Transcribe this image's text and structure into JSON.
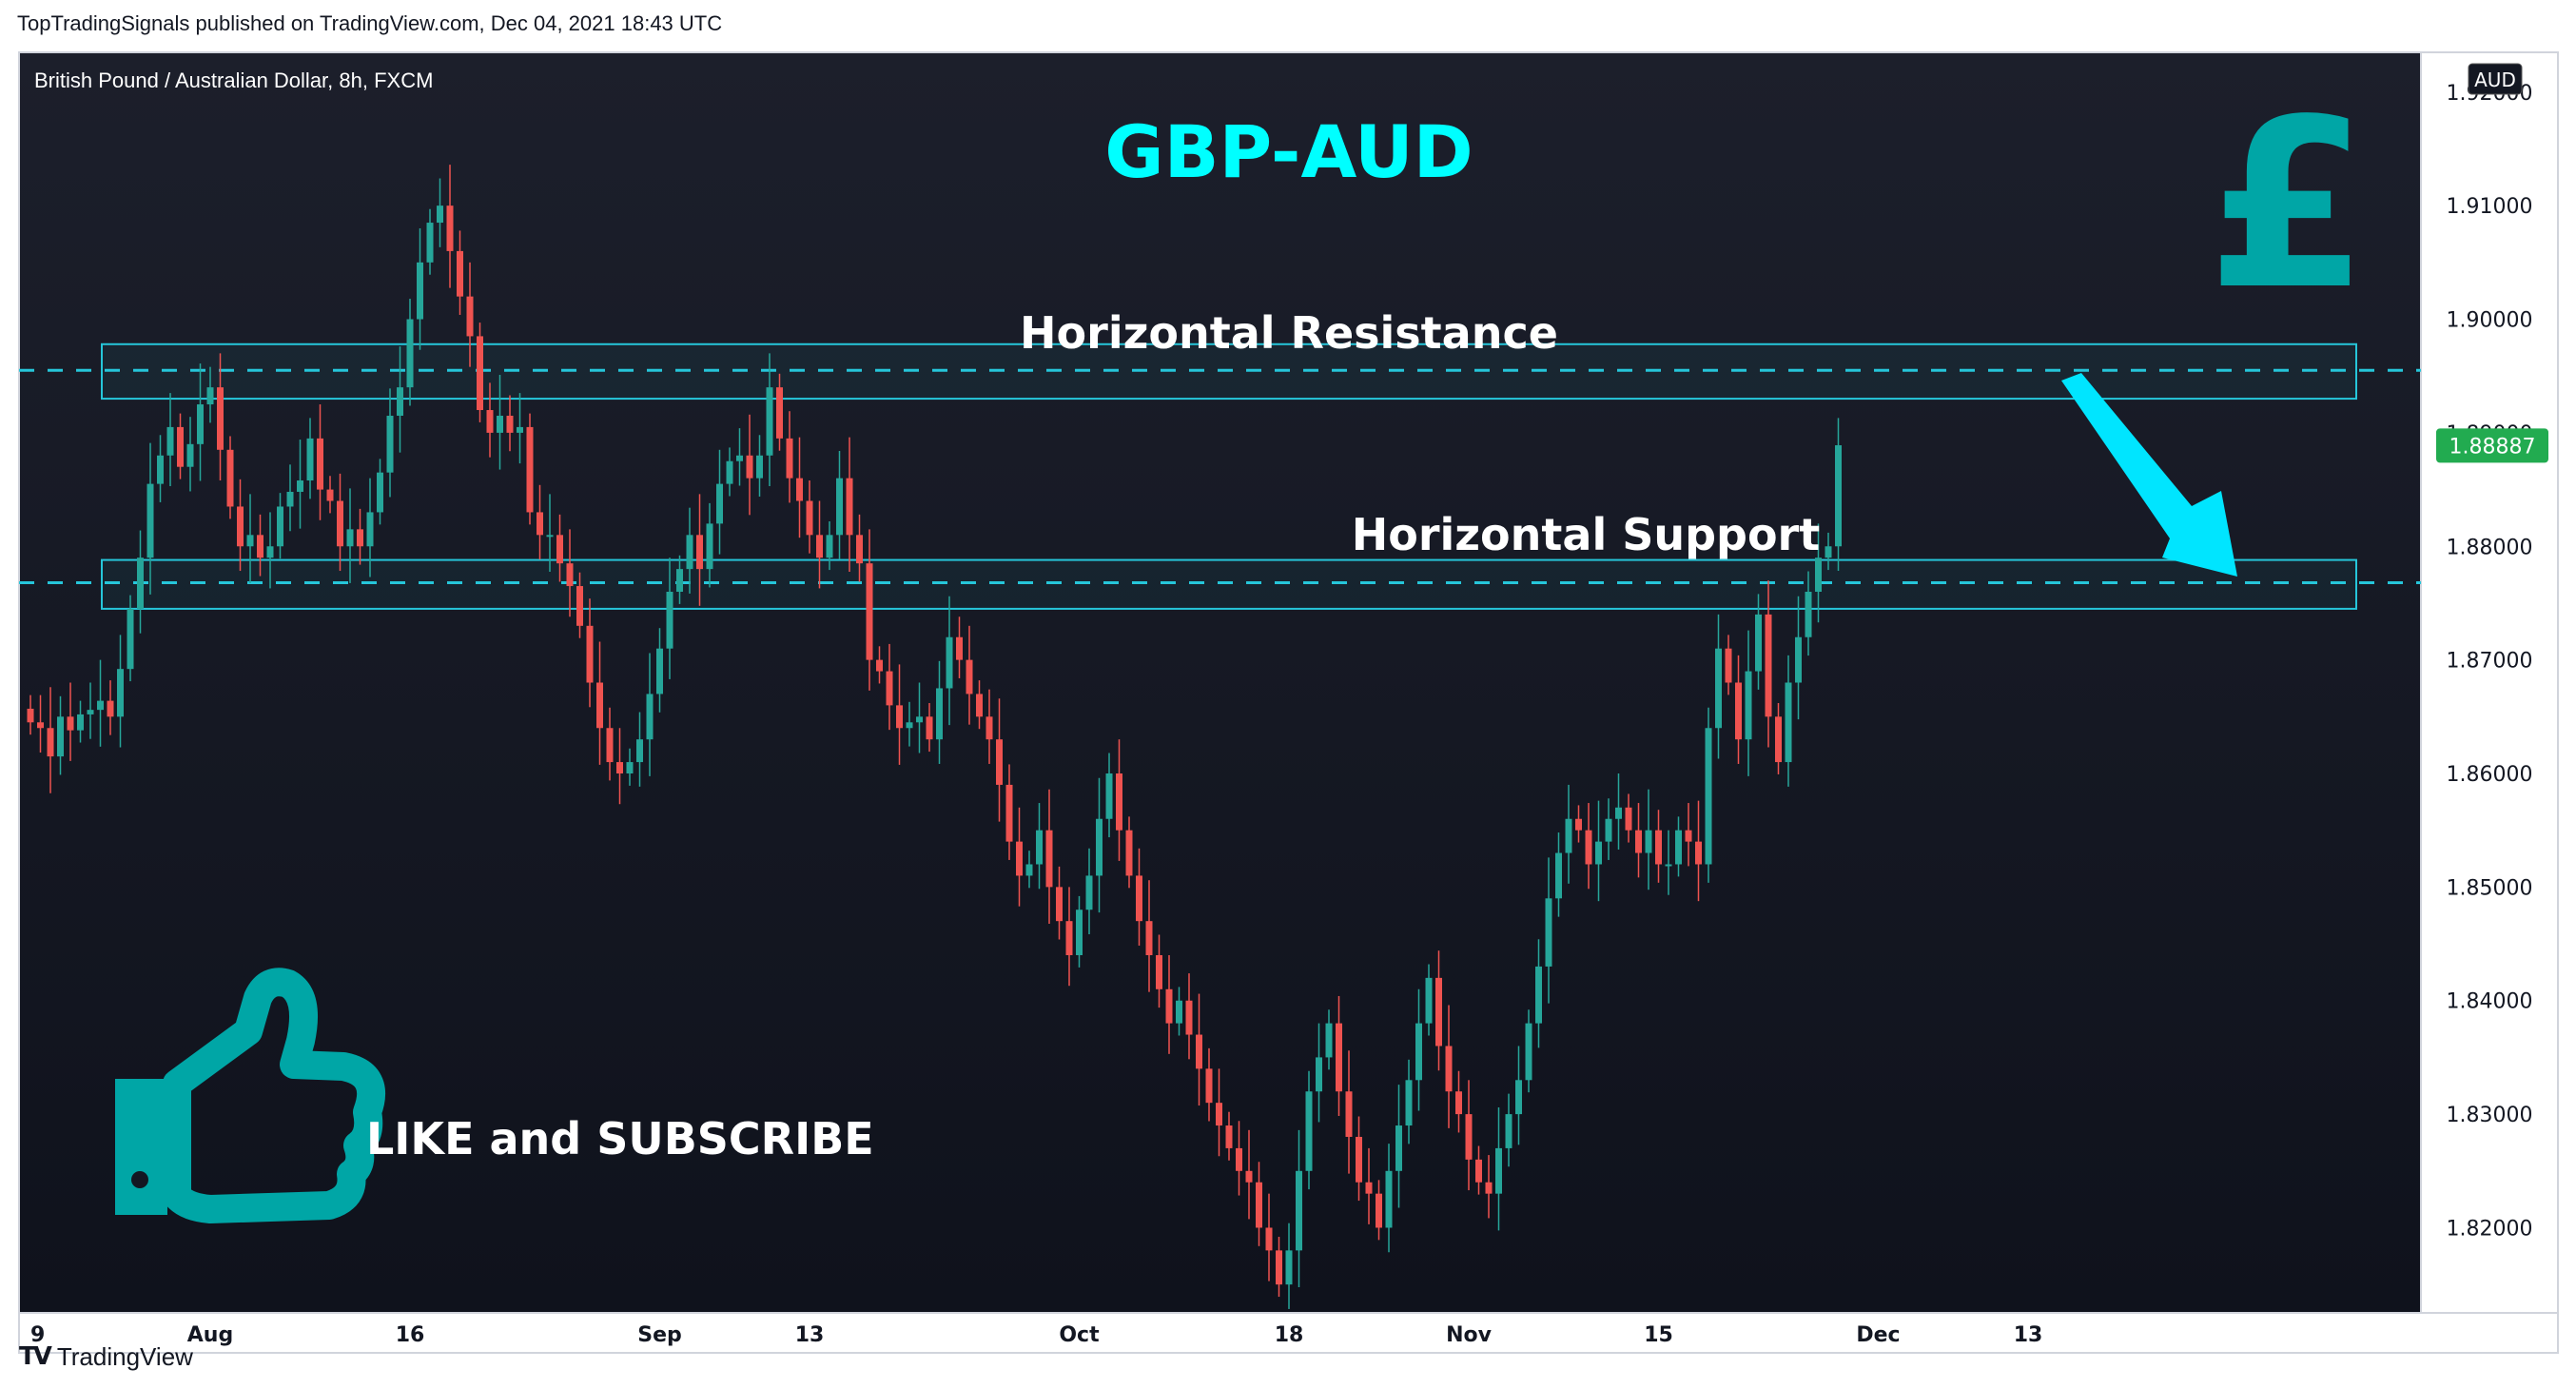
{
  "header": {
    "published": "TopTradingSignals published on TradingView.com, Dec 04, 2021 18:43 UTC"
  },
  "footer": {
    "logo": "TV",
    "brand": "TradingView"
  },
  "colors": {
    "background": "#131722",
    "up": "#26a69a",
    "down": "#ef5350",
    "accent": "#00ffff",
    "zone": "#26c6da",
    "brand_teal": "#00a6a6",
    "price_label_bg": "#22ab50"
  },
  "chart_data": {
    "type": "candlestick",
    "symbol_line": "British Pound / Australian Dollar, 8h, FXCM",
    "title": "GBP-AUD",
    "currency_badge": "AUD",
    "currency_icon": "pound-sign-icon",
    "yaxis": {
      "range": [
        1.8125,
        1.9235
      ],
      "ticks": [
        "1.92000",
        "1.91000",
        "1.90000",
        "1.89000",
        "1.88000",
        "1.87000",
        "1.86000",
        "1.85000",
        "1.84000",
        "1.83000",
        "1.82000"
      ]
    },
    "xaxis": {
      "ticks": [
        {
          "label": "9",
          "i": 0
        },
        {
          "label": "Aug",
          "i": 18
        },
        {
          "label": "16",
          "i": 38
        },
        {
          "label": "Sep",
          "i": 63
        },
        {
          "label": "13",
          "i": 78
        },
        {
          "label": "Oct",
          "i": 105
        },
        {
          "label": "18",
          "i": 126
        },
        {
          "label": "Nov",
          "i": 144
        },
        {
          "label": "15",
          "i": 163
        },
        {
          "label": "Dec",
          "i": 185
        },
        {
          "label": "13",
          "i": 200
        }
      ]
    },
    "last_price": "1.88887",
    "last_price_value": 1.88887,
    "closes": [
      1.8645,
      1.864,
      1.8615,
      1.865,
      1.8638,
      1.8652,
      1.8656,
      1.8664,
      1.865,
      1.8692,
      1.8745,
      1.879,
      1.8855,
      1.888,
      1.8905,
      1.887,
      1.889,
      1.8925,
      1.894,
      1.8885,
      1.8835,
      1.88,
      1.881,
      1.879,
      1.88,
      1.8835,
      1.8848,
      1.8858,
      1.8895,
      1.885,
      1.884,
      1.88,
      1.8815,
      1.88,
      1.883,
      1.8865,
      1.8915,
      1.894,
      1.9,
      1.905,
      1.9085,
      1.91,
      1.906,
      1.902,
      1.8985,
      1.892,
      1.89,
      1.8915,
      1.89,
      1.8905,
      1.883,
      1.881,
      1.881,
      1.8785,
      1.8765,
      1.873,
      1.868,
      1.864,
      1.861,
      1.86,
      1.861,
      1.863,
      1.867,
      1.871,
      1.876,
      1.878,
      1.881,
      1.878,
      1.882,
      1.8855,
      1.8875,
      1.888,
      1.886,
      1.888,
      1.894,
      1.8895,
      1.886,
      1.884,
      1.881,
      1.879,
      1.881,
      1.886,
      1.881,
      1.8785,
      1.87,
      1.869,
      1.866,
      1.864,
      1.8645,
      1.865,
      1.863,
      1.8675,
      1.872,
      1.87,
      1.867,
      1.865,
      1.863,
      1.859,
      1.854,
      1.851,
      1.852,
      1.855,
      1.85,
      1.847,
      1.844,
      1.848,
      1.851,
      1.856,
      1.86,
      1.855,
      1.851,
      1.847,
      1.844,
      1.841,
      1.838,
      1.84,
      1.837,
      1.834,
      1.831,
      1.829,
      1.827,
      1.825,
      1.824,
      1.82,
      1.818,
      1.815,
      1.818,
      1.825,
      1.832,
      1.835,
      1.838,
      1.832,
      1.828,
      1.824,
      1.823,
      1.82,
      1.825,
      1.829,
      1.833,
      1.838,
      1.842,
      1.836,
      1.832,
      1.83,
      1.826,
      1.824,
      1.823,
      1.827,
      1.83,
      1.833,
      1.838,
      1.843,
      1.849,
      1.853,
      1.856,
      1.855,
      1.852,
      1.854,
      1.856,
      1.857,
      1.855,
      1.853,
      1.855,
      1.852,
      1.852,
      1.855,
      1.854,
      1.852,
      1.864,
      1.871,
      1.868,
      1.863,
      1.869,
      1.874,
      1.865,
      1.861,
      1.868,
      1.872,
      1.876,
      1.879,
      1.88,
      1.8889
    ]
  },
  "annotations": {
    "resistance_label": "Horizontal Resistance",
    "support_label": "Horizontal Support",
    "resistance_level": 1.8955,
    "resistance_zone": [
      1.893,
      1.8978
    ],
    "support_level": 1.8768,
    "support_zone": [
      1.8745,
      1.8788
    ],
    "cta_label": "LIKE and SUBSCRIBE",
    "cta_icon": "thumbs-up-icon",
    "arrow_icon": "down-arrow-icon"
  }
}
